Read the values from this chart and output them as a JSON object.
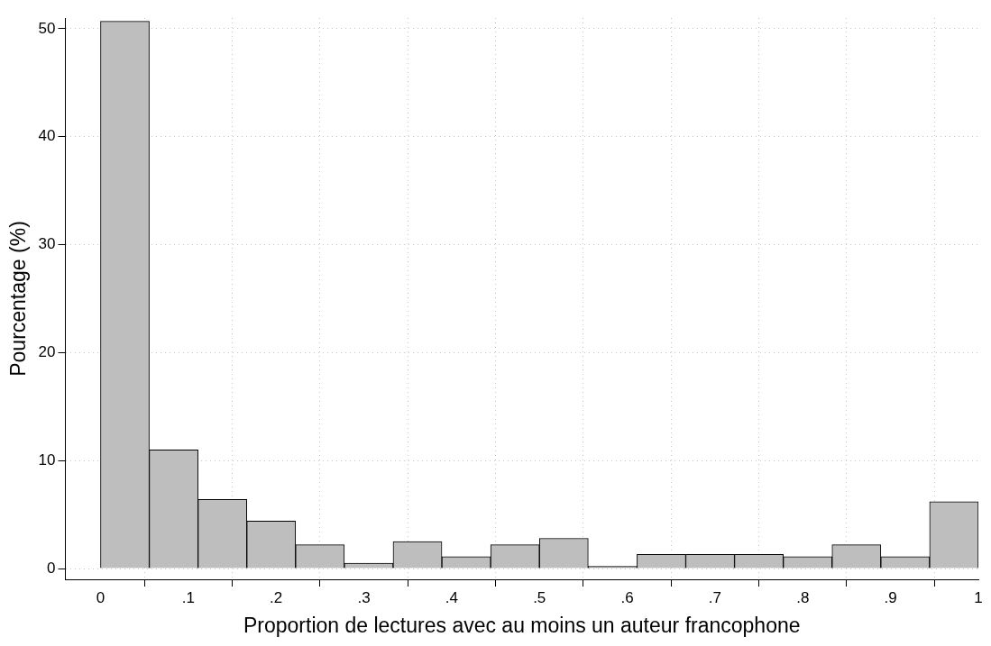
{
  "chart_data": {
    "type": "histogram",
    "xlabel": "Proportion de lectures avec au moins un auteur francophone",
    "ylabel": "Pourcentage (%)",
    "bins": [
      0,
      0.0556,
      0.1111,
      0.1667,
      0.2222,
      0.2778,
      0.3333,
      0.3889,
      0.4444,
      0.5,
      0.5556,
      0.6111,
      0.6667,
      0.7222,
      0.7778,
      0.8333,
      0.8889,
      0.9444,
      1
    ],
    "values": [
      50.7,
      11.0,
      6.4,
      4.4,
      2.2,
      0.5,
      2.5,
      1.1,
      2.2,
      2.8,
      0.2,
      1.3,
      1.3,
      1.3,
      1.1,
      2.2,
      1.1,
      6.2
    ],
    "color": "#bebebe",
    "xlim": [
      -0.04,
      1
    ],
    "ylim": [
      -1,
      51
    ],
    "xticks": [
      0,
      {
        "value": 0.1,
        "label": ".1"
      },
      {
        "value": 0.2,
        "label": ".2"
      },
      {
        "value": 0.3,
        "label": ".3"
      },
      {
        "value": 0.4,
        "label": ".4"
      },
      {
        "value": 0.5,
        "label": ".5"
      },
      {
        "value": 0.6,
        "label": ".6"
      },
      {
        "value": 0.7,
        "label": ".7"
      },
      {
        "value": 0.8,
        "label": ".8"
      },
      {
        "value": 0.9,
        "label": ".9"
      },
      1
    ],
    "yticks": [
      0,
      10,
      20,
      30,
      40,
      50
    ],
    "grid": true
  }
}
